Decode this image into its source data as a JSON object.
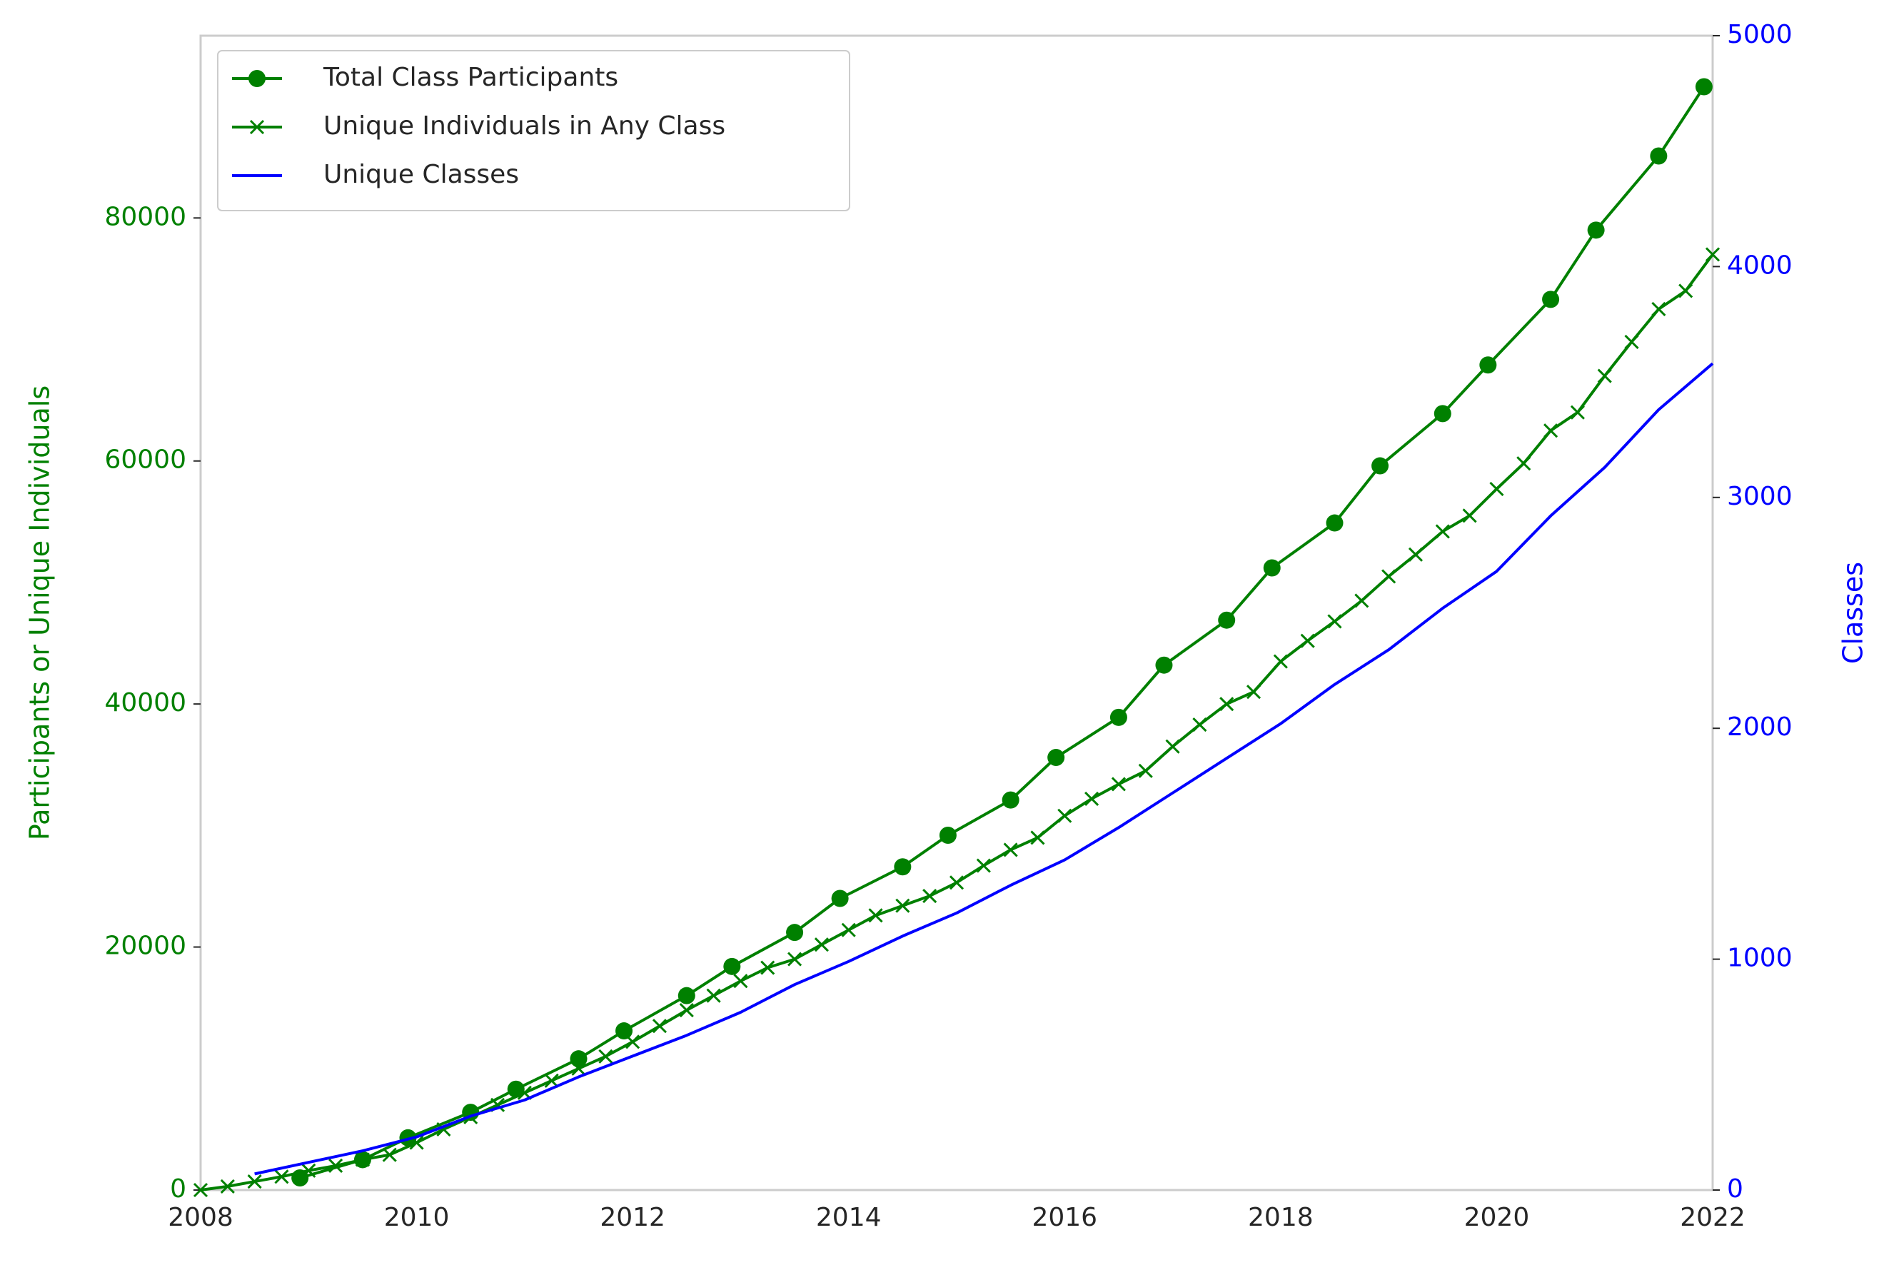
{
  "chart_data": {
    "type": "line",
    "xlim": [
      2008,
      2022
    ],
    "xticks": [
      2008,
      2010,
      2012,
      2014,
      2016,
      2018,
      2020,
      2022
    ],
    "ylim": [
      0,
      95000
    ],
    "yticks": [
      0,
      20000,
      40000,
      60000,
      80000
    ],
    "y2lim": [
      0,
      5000
    ],
    "y2ticks": [
      0,
      1000,
      2000,
      3000,
      4000,
      5000
    ],
    "ylabel": "Participants or Unique Individuals",
    "ylabel_color": "#008000",
    "y2label": "Classes",
    "y2label_color": "#0000ff",
    "legend": "upper left",
    "series": [
      {
        "name": "Total Class Participants",
        "color": "#008000",
        "marker": "o",
        "x": [
          2008.92,
          2009.5,
          2009.92,
          2010.5,
          2010.92,
          2011.5,
          2011.92,
          2012.5,
          2012.92,
          2013.5,
          2013.92,
          2014.5,
          2014.92,
          2015.5,
          2015.92,
          2016.5,
          2016.92,
          2017.5,
          2017.92,
          2018.5,
          2018.92,
          2019.5,
          2019.92,
          2020.5,
          2020.92,
          2021.5,
          2021.92
        ],
        "values": [
          1000,
          2500,
          4300,
          6400,
          8300,
          10800,
          13100,
          16000,
          18400,
          21200,
          24000,
          26600,
          29200,
          32100,
          35600,
          38900,
          43200,
          46900,
          51200,
          54900,
          59600,
          63900,
          67900,
          73300,
          79000,
          85100,
          90800
        ]
      },
      {
        "name": "Unique Individuals in Any Class",
        "color": "#008000",
        "marker": "x",
        "x": [
          2008,
          2008.25,
          2008.5,
          2008.75,
          2009,
          2009.25,
          2009.5,
          2009.75,
          2010,
          2010.25,
          2010.5,
          2010.75,
          2011,
          2011.25,
          2011.5,
          2011.75,
          2012,
          2012.25,
          2012.5,
          2012.75,
          2013,
          2013.25,
          2013.5,
          2013.75,
          2014,
          2014.25,
          2014.5,
          2014.75,
          2015,
          2015.25,
          2015.5,
          2015.75,
          2016,
          2016.25,
          2016.5,
          2016.75,
          2017,
          2017.25,
          2017.5,
          2017.75,
          2018,
          2018.25,
          2018.5,
          2018.75,
          2019,
          2019.25,
          2019.5,
          2019.75,
          2020,
          2020.25,
          2020.5,
          2020.75,
          2021,
          2021.25,
          2021.5,
          2021.75,
          2022
        ],
        "values": [
          0,
          300,
          700,
          1100,
          1600,
          2000,
          2500,
          2900,
          3900,
          5000,
          6000,
          7000,
          8000,
          9000,
          10000,
          11000,
          12200,
          13500,
          14800,
          16000,
          17200,
          18300,
          19000,
          20200,
          21400,
          22600,
          23400,
          24200,
          25300,
          26700,
          28000,
          29000,
          30800,
          32200,
          33400,
          34500,
          36500,
          38300,
          40000,
          41000,
          43500,
          45200,
          46800,
          48500,
          50500,
          52300,
          54200,
          55500,
          57700,
          59800,
          62500,
          64000,
          67000,
          69800,
          72500,
          74000,
          77000
        ]
      },
      {
        "name": "Unique Classes",
        "color": "#0000ff",
        "axis": "y2",
        "x": [
          2008.5,
          2009,
          2009.5,
          2010,
          2010.5,
          2011,
          2011.5,
          2012,
          2012.5,
          2013,
          2013.5,
          2014,
          2014.5,
          2015,
          2015.5,
          2016,
          2016.5,
          2017,
          2017.5,
          2018,
          2018.5,
          2019,
          2019.5,
          2020,
          2020.5,
          2021,
          2021.5,
          2022
        ],
        "values": [
          70,
          120,
          170,
          230,
          320,
          390,
          490,
          580,
          670,
          770,
          890,
          990,
          1100,
          1200,
          1320,
          1430,
          1570,
          1720,
          1870,
          2020,
          2190,
          2340,
          2520,
          2680,
          2920,
          3130,
          3380,
          3580
        ]
      }
    ]
  }
}
